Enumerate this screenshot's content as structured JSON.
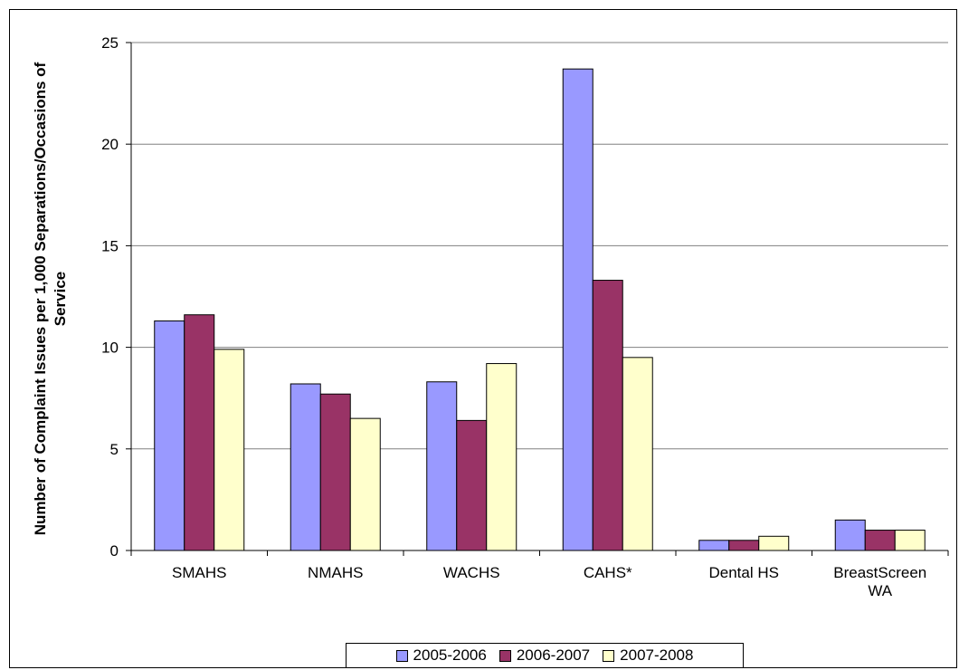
{
  "chart_data": {
    "type": "bar",
    "title": "",
    "xlabel": "",
    "ylabel_lines": [
      "Number of Complaint Issues per 1,000 Separations/Occasions of",
      "Service"
    ],
    "ylim": [
      0,
      25
    ],
    "yticks": [
      0,
      5,
      10,
      15,
      20,
      25
    ],
    "ytick_labels": [
      "0",
      "5",
      "10",
      "15",
      "20",
      "25"
    ],
    "categories": [
      [
        "SMAHS"
      ],
      [
        "NMAHS"
      ],
      [
        "WACHS"
      ],
      [
        "CAHS*"
      ],
      [
        "Dental HS"
      ],
      [
        "BreastScreen",
        "WA"
      ]
    ],
    "series": [
      {
        "name": "2005-2006",
        "color": "#9999ff",
        "values": [
          11.3,
          8.2,
          8.3,
          23.7,
          0.5,
          1.5
        ]
      },
      {
        "name": "2006-2007",
        "color": "#993366",
        "values": [
          11.6,
          7.7,
          6.4,
          13.3,
          0.5,
          1.0
        ]
      },
      {
        "name": "2007-2008",
        "color": "#ffffcc",
        "values": [
          9.9,
          6.5,
          9.2,
          9.5,
          0.7,
          1.0
        ]
      }
    ],
    "grid": true,
    "legend_position": "bottom"
  }
}
